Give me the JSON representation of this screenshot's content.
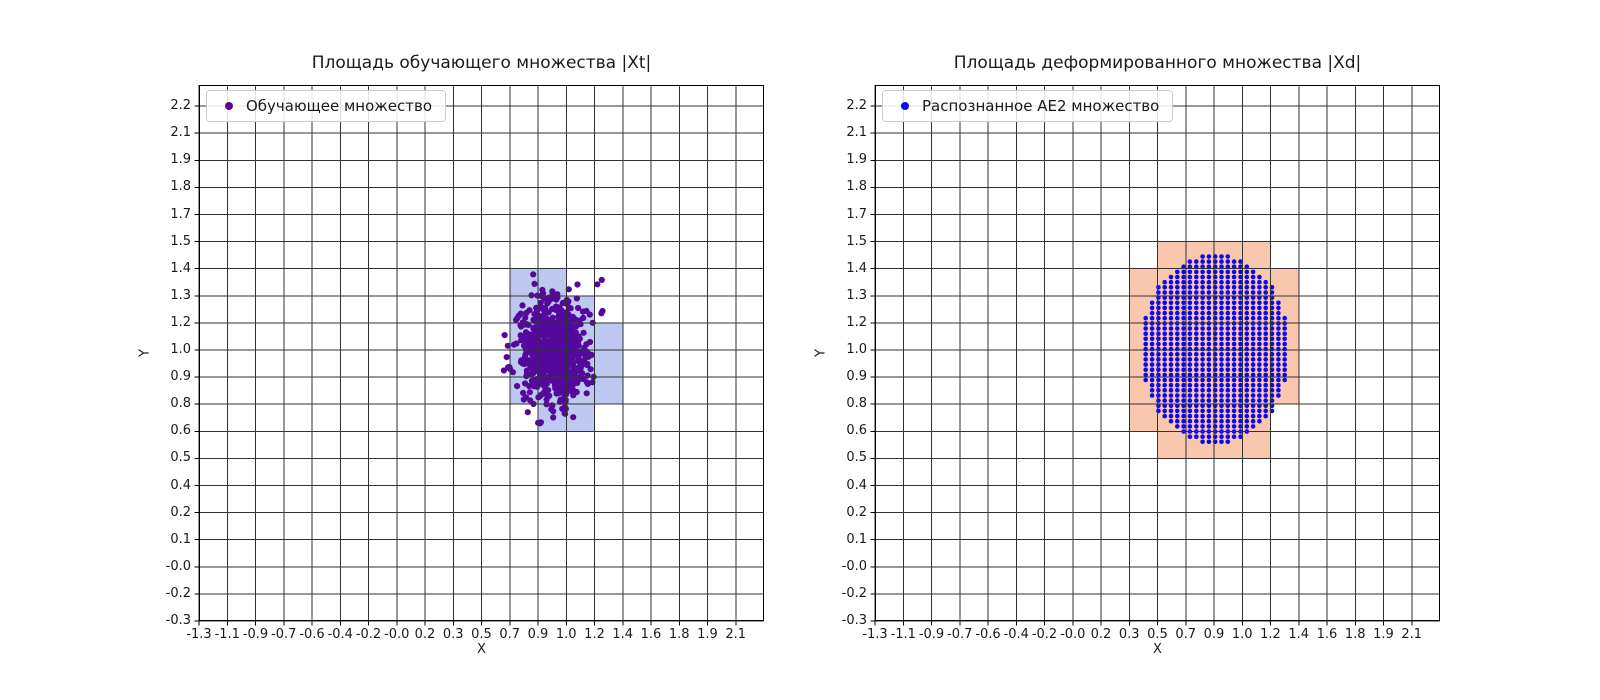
{
  "figure": {
    "background": "#ffffff",
    "grid_color": "#333333",
    "spine_color": "#000000",
    "text_color": "#1a1a1a",
    "legend_border_color": "#cbcbcb"
  },
  "chart_data": [
    {
      "type": "scatter",
      "title": "Площадь обучающего множества |Xt|",
      "xlabel": "X",
      "ylabel": "Y",
      "legend_label": "Обучающее множество",
      "legend_position": "upper-left",
      "grid": true,
      "x_tick_labels": [
        "-1.3",
        "-1.1",
        "-0.9",
        "-0.7",
        "-0.6",
        "-0.4",
        "-0.2",
        "-0.0",
        "0.2",
        "0.3",
        "0.5",
        "0.7",
        "0.9",
        "1.0",
        "1.2",
        "1.4",
        "1.6",
        "1.8",
        "1.9",
        "2.1"
      ],
      "y_tick_labels": [
        "-0.3",
        "-0.2",
        "-0.0",
        "0.1",
        "0.2",
        "0.4",
        "0.5",
        "0.6",
        "0.8",
        "0.9",
        "1.0",
        "1.2",
        "1.3",
        "1.4",
        "1.5",
        "1.7",
        "1.8",
        "1.9",
        "2.1",
        "2.2"
      ],
      "x_axis": {
        "min": -1.3,
        "tick_step": 0.1789473684,
        "num_ticks": 20
      },
      "y_axis": {
        "min": -0.3,
        "tick_step": 0.1315789474,
        "num_ticks": 20
      },
      "point_color": "#55099c",
      "point_radius_px": 3.1,
      "points_model": {
        "distribution": "gaussian",
        "n": 800,
        "mean": [
          0.95,
          1.01
        ],
        "std": [
          0.105,
          0.125
        ],
        "clip_sigma": 3.2,
        "seed": 1234567
      },
      "highlight_cells": {
        "color": "#bec9f1",
        "cells": [
          [
            11,
            12
          ],
          [
            12,
            12
          ],
          [
            11,
            11
          ],
          [
            12,
            11
          ],
          [
            13,
            11
          ],
          [
            11,
            10
          ],
          [
            12,
            10
          ],
          [
            13,
            10
          ],
          [
            14,
            10
          ],
          [
            11,
            9
          ],
          [
            12,
            9
          ],
          [
            13,
            9
          ],
          [
            14,
            9
          ],
          [
            11,
            8
          ],
          [
            12,
            8
          ],
          [
            13,
            8
          ],
          [
            14,
            8
          ],
          [
            12,
            7
          ],
          [
            13,
            7
          ]
        ]
      }
    },
    {
      "type": "scatter",
      "title": "Площадь деформированного множества |Xd|",
      "xlabel": "X",
      "ylabel": "Y",
      "legend_label": "Распознанное AE2 множество",
      "legend_position": "upper-left",
      "grid": true,
      "x_tick_labels": [
        "-1.3",
        "-1.1",
        "-0.9",
        "-0.7",
        "-0.6",
        "-0.4",
        "-0.2",
        "-0.0",
        "0.2",
        "0.3",
        "0.5",
        "0.7",
        "0.9",
        "1.0",
        "1.2",
        "1.4",
        "1.6",
        "1.8",
        "1.9",
        "2.1"
      ],
      "y_tick_labels": [
        "-0.3",
        "-0.2",
        "-0.0",
        "0.1",
        "0.2",
        "0.4",
        "0.5",
        "0.6",
        "0.8",
        "0.9",
        "1.0",
        "1.2",
        "1.3",
        "1.4",
        "1.5",
        "1.7",
        "1.8",
        "1.9",
        "2.1",
        "2.2"
      ],
      "x_axis": {
        "min": -1.3,
        "tick_step": 0.1789473684,
        "num_ticks": 20
      },
      "y_axis": {
        "min": -0.3,
        "tick_step": 0.1315789474,
        "num_ticks": 20
      },
      "point_color": "#0b08ee",
      "point_radius_px": 2.3,
      "points_model": {
        "distribution": "ellipse-lattice",
        "center": [
          0.855,
          1.02
        ],
        "rx": 0.475,
        "ry": 0.46,
        "step": [
          0.04,
          0.025
        ]
      },
      "highlight_cells": {
        "color": "#f9c6ae",
        "cells": [
          [
            10,
            13
          ],
          [
            11,
            13
          ],
          [
            12,
            13
          ],
          [
            13,
            13
          ],
          [
            9,
            12
          ],
          [
            10,
            12
          ],
          [
            11,
            12
          ],
          [
            12,
            12
          ],
          [
            13,
            12
          ],
          [
            14,
            12
          ],
          [
            9,
            11
          ],
          [
            10,
            11
          ],
          [
            11,
            11
          ],
          [
            12,
            11
          ],
          [
            13,
            11
          ],
          [
            14,
            11
          ],
          [
            9,
            10
          ],
          [
            10,
            10
          ],
          [
            11,
            10
          ],
          [
            12,
            10
          ],
          [
            13,
            10
          ],
          [
            14,
            10
          ],
          [
            9,
            9
          ],
          [
            10,
            9
          ],
          [
            11,
            9
          ],
          [
            12,
            9
          ],
          [
            13,
            9
          ],
          [
            14,
            9
          ],
          [
            9,
            8
          ],
          [
            10,
            8
          ],
          [
            11,
            8
          ],
          [
            12,
            8
          ],
          [
            13,
            8
          ],
          [
            14,
            8
          ],
          [
            9,
            7
          ],
          [
            10,
            7
          ],
          [
            11,
            7
          ],
          [
            12,
            7
          ],
          [
            13,
            7
          ],
          [
            10,
            6
          ],
          [
            11,
            6
          ],
          [
            12,
            6
          ],
          [
            13,
            6
          ]
        ]
      }
    }
  ]
}
